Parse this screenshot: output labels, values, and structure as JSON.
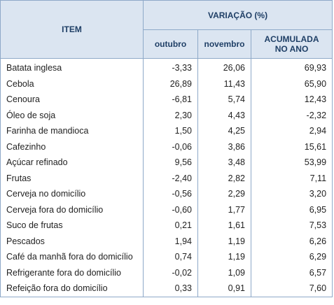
{
  "header": {
    "item": "ITEM",
    "group": "VARIAÇÃO (%)",
    "columns": [
      "outubro",
      "novembro",
      "ACUMULADA NO ANO"
    ]
  },
  "table": {
    "rows": [
      [
        "Batata inglesa",
        "-3,33",
        "26,06",
        "69,93"
      ],
      [
        "Cebola",
        "26,89",
        "11,43",
        "65,90"
      ],
      [
        "Cenoura",
        "-6,81",
        "5,74",
        "12,43"
      ],
      [
        "Óleo de soja",
        "2,30",
        "4,43",
        "-2,32"
      ],
      [
        "Farinha de mandioca",
        "1,50",
        "4,25",
        "2,94"
      ],
      [
        "Cafezinho",
        "-0,06",
        "3,86",
        "15,61"
      ],
      [
        "Açúcar refinado",
        "9,56",
        "3,48",
        "53,99"
      ],
      [
        "Frutas",
        "-2,40",
        "2,82",
        "7,11"
      ],
      [
        "Cerveja no domicílio",
        "-0,56",
        "2,29",
        "3,20"
      ],
      [
        "Cerveja fora do domicílio",
        "-0,60",
        "1,77",
        "6,95"
      ],
      [
        "Suco de frutas",
        "0,21",
        "1,61",
        "7,53"
      ],
      [
        "Pescados",
        "1,94",
        "1,19",
        "6,26"
      ],
      [
        "Café da manhã fora do domicílio",
        "0,74",
        "1,19",
        "6,29"
      ],
      [
        "Refrigerante fora do domicílio",
        "-0,02",
        "1,09",
        "6,57"
      ],
      [
        "Refeição fora do domicílio",
        "0,33",
        "0,91",
        "7,60"
      ]
    ]
  }
}
